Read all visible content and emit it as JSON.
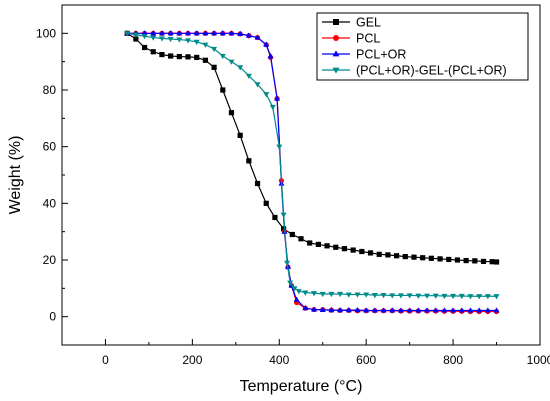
{
  "chart_data": {
    "type": "line",
    "title": "",
    "xlabel": "Temperature (°C)",
    "ylabel": "Weight (%)",
    "xlim": [
      -100,
      1000
    ],
    "ylim": [
      -10,
      110
    ],
    "xticks": [
      0,
      200,
      400,
      600,
      800,
      1000
    ],
    "yticks": [
      0,
      20,
      40,
      60,
      80,
      100
    ],
    "grid": false,
    "legend_position": "top-right",
    "series": [
      {
        "name": "GEL",
        "color": "#000000",
        "marker": "square",
        "x": [
          50,
          70,
          90,
          110,
          130,
          150,
          170,
          190,
          210,
          230,
          250,
          270,
          290,
          310,
          330,
          350,
          370,
          390,
          410,
          430,
          450,
          470,
          490,
          510,
          530,
          550,
          570,
          590,
          610,
          630,
          650,
          670,
          690,
          710,
          730,
          750,
          770,
          790,
          810,
          830,
          850,
          870,
          890,
          900
        ],
        "y": [
          100,
          98,
          95,
          93.5,
          92.5,
          92,
          91.8,
          91.7,
          91.5,
          90.5,
          88,
          80,
          72,
          64,
          55,
          47,
          40,
          35,
          31,
          29,
          27.5,
          26,
          25.5,
          25,
          24.5,
          24,
          23.5,
          23,
          22.5,
          22,
          21.8,
          21.5,
          21.2,
          21,
          20.8,
          20.6,
          20.4,
          20.2,
          20,
          19.8,
          19.7,
          19.5,
          19.4,
          19.3
        ]
      },
      {
        "name": "PCL",
        "color": "#ff0000",
        "marker": "circle",
        "x": [
          50,
          70,
          90,
          110,
          130,
          150,
          170,
          190,
          210,
          230,
          250,
          270,
          290,
          310,
          330,
          350,
          370,
          380,
          395,
          405,
          412,
          420,
          428,
          440,
          460,
          480,
          500,
          520,
          540,
          560,
          580,
          600,
          620,
          640,
          660,
          680,
          700,
          720,
          740,
          760,
          780,
          800,
          820,
          840,
          860,
          880,
          900
        ],
        "y": [
          100,
          100,
          100,
          100,
          100,
          100,
          100,
          100,
          100,
          100,
          100,
          100,
          100,
          99.8,
          99.2,
          98.5,
          96,
          91.5,
          77,
          48,
          30,
          17.5,
          11,
          5,
          3,
          2.5,
          2.5,
          2.3,
          2.2,
          2.2,
          2.1,
          2.1,
          2.1,
          2.1,
          2.1,
          2,
          2,
          2,
          2,
          2,
          1.9,
          1.9,
          1.9,
          1.8,
          1.8,
          1.8,
          1.8
        ]
      },
      {
        "name": "PCL+OR",
        "color": "#0000ff",
        "marker": "triangle-up",
        "x": [
          50,
          70,
          90,
          110,
          130,
          150,
          170,
          190,
          210,
          230,
          250,
          270,
          290,
          310,
          330,
          350,
          370,
          380,
          395,
          405,
          412,
          420,
          428,
          440,
          460,
          480,
          500,
          520,
          540,
          560,
          580,
          600,
          620,
          640,
          660,
          680,
          700,
          720,
          740,
          760,
          780,
          800,
          820,
          840,
          860,
          880,
          900
        ],
        "y": [
          100,
          100,
          100,
          100,
          100,
          100,
          100,
          100,
          100,
          100,
          100,
          100,
          100,
          99.8,
          99.2,
          98.5,
          96,
          92,
          77,
          47,
          30,
          17.5,
          11,
          6,
          3,
          2.5,
          2.4,
          2.3,
          2.3,
          2.3,
          2.3,
          2.2,
          2.2,
          2.2,
          2.2,
          2.2,
          2.2,
          2.2,
          2.2,
          2.2,
          2.2,
          2.2,
          2.2,
          2.2,
          2.2,
          2.2,
          2.2
        ]
      },
      {
        "name": "(PCL+OR)-GEL-(PCL+OR)",
        "color": "#008b8b",
        "marker": "triangle-down",
        "x": [
          50,
          70,
          90,
          110,
          130,
          150,
          170,
          190,
          210,
          230,
          250,
          270,
          290,
          310,
          330,
          350,
          370,
          385,
          400,
          410,
          418,
          425,
          435,
          445,
          460,
          480,
          500,
          520,
          540,
          560,
          580,
          600,
          620,
          640,
          660,
          680,
          700,
          720,
          740,
          760,
          780,
          800,
          820,
          840,
          860,
          880,
          900
        ],
        "y": [
          100,
          99.5,
          99,
          98.5,
          98.2,
          98,
          97.8,
          97.5,
          97,
          96,
          94.5,
          92,
          90,
          88,
          85,
          82,
          78.5,
          74,
          60,
          36,
          19,
          12,
          10,
          9,
          8.5,
          8.3,
          8,
          8,
          8,
          7.8,
          7.8,
          7.8,
          7.6,
          7.6,
          7.5,
          7.5,
          7.5,
          7.4,
          7.4,
          7.4,
          7.3,
          7.3,
          7.3,
          7.2,
          7.2,
          7.2,
          7.2
        ]
      }
    ]
  }
}
